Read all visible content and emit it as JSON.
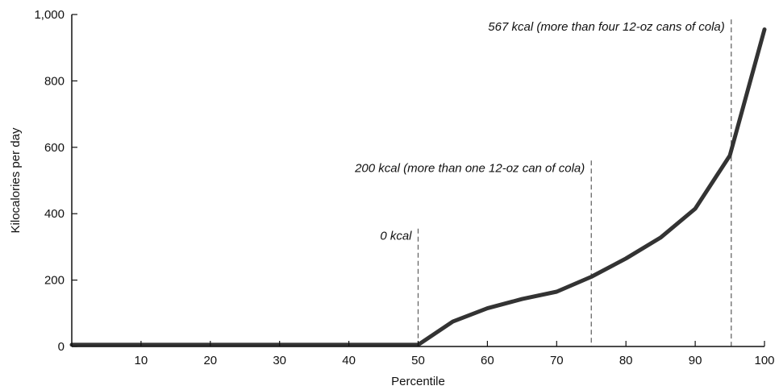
{
  "chart_data": {
    "type": "line",
    "title": "",
    "xlabel": "Percentile",
    "ylabel": "Kilocalories per day",
    "xlim": [
      0,
      100
    ],
    "ylim": [
      0,
      1000
    ],
    "x_ticks": [
      10,
      20,
      30,
      40,
      50,
      60,
      70,
      80,
      90,
      100
    ],
    "x_tick_labels": [
      "10",
      "20",
      "30",
      "40",
      "50",
      "60",
      "70",
      "80",
      "90",
      "100"
    ],
    "y_ticks": [
      0,
      200,
      400,
      600,
      800,
      1000
    ],
    "y_tick_labels": [
      "0",
      "200",
      "400",
      "600",
      "800",
      "1,000"
    ],
    "grid": false,
    "series": [
      {
        "color": "#333333",
        "points": [
          {
            "x": 0,
            "y": 5
          },
          {
            "x": 50,
            "y": 5
          },
          {
            "x": 55,
            "y": 75
          },
          {
            "x": 60,
            "y": 115
          },
          {
            "x": 65,
            "y": 143
          },
          {
            "x": 70,
            "y": 165
          },
          {
            "x": 75,
            "y": 210
          },
          {
            "x": 80,
            "y": 265
          },
          {
            "x": 85,
            "y": 328
          },
          {
            "x": 90,
            "y": 415
          },
          {
            "x": 95,
            "y": 575
          },
          {
            "x": 100,
            "y": 955
          }
        ]
      }
    ],
    "annotations": [
      {
        "text": "0 kcal",
        "x": 50,
        "y_top": 355
      },
      {
        "text": "200 kcal (more than one 12-oz can of cola)",
        "x": 75,
        "y_top": 560
      },
      {
        "text": "567 kcal (more than four 12-oz cans of cola)",
        "x": 95.2,
        "y_top": 985
      }
    ]
  }
}
